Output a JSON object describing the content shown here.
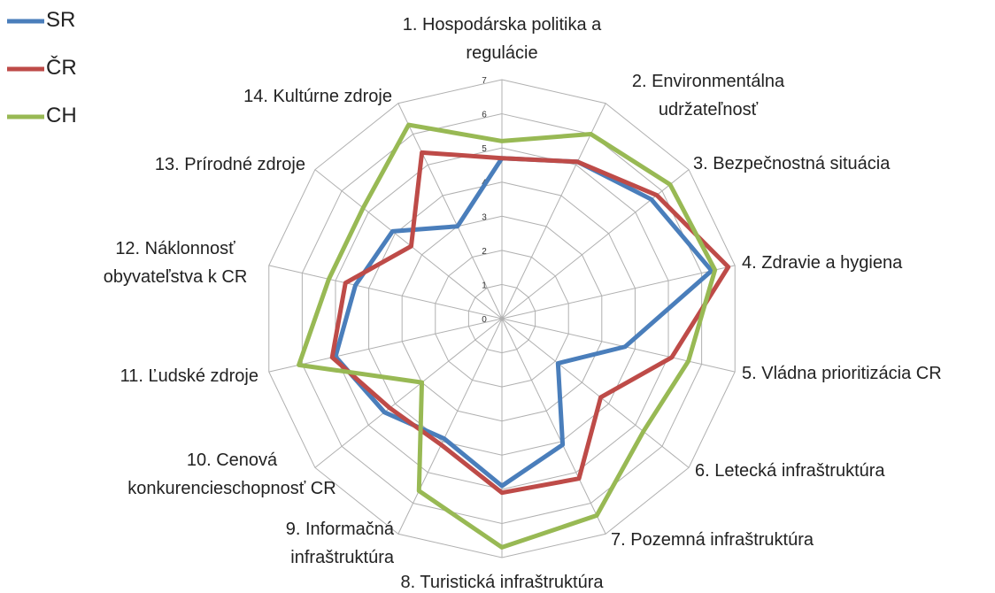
{
  "chart_data": {
    "type": "radar",
    "categories": [
      "1. Hospodárska politika a regulácie",
      "2. Environmentálna udržateľnosť",
      "3. Bezpečnostná situácia",
      "4. Zdravie a hygiena",
      "5. Vládna prioritizácia CR",
      "6. Letecká infraštruktúra",
      "7. Pozemná infraštruktúra",
      "8. Turistická infraštruktúra",
      "9. Informačná infraštruktúra",
      "10. Cenová konkurencieschopnosť CR",
      "11. Ľudské zdroje",
      "12. Náklonnosť obyvateľstva k CR",
      "13. Prírodné zdroje",
      "14. Kultúrne zdroje"
    ],
    "series": [
      {
        "name": "SR",
        "color": "#4a7ebb",
        "values": [
          4.7,
          5.1,
          5.6,
          6.3,
          3.7,
          2.1,
          4.1,
          4.9,
          3.9,
          4.4,
          5.0,
          4.4,
          4.1,
          3.0
        ]
      },
      {
        "name": "ČR",
        "color": "#be4b48",
        "values": [
          4.7,
          5.1,
          5.8,
          6.8,
          5.1,
          3.7,
          5.2,
          5.1,
          4.1,
          4.2,
          5.1,
          4.7,
          3.4,
          5.4
        ]
      },
      {
        "name": "CH",
        "color": "#98b954",
        "values": [
          5.2,
          6.0,
          6.3,
          6.4,
          5.6,
          5.3,
          6.4,
          6.7,
          5.6,
          3.0,
          6.1,
          5.2,
          5.2,
          6.3
        ]
      }
    ],
    "ylim": [
      0,
      7
    ],
    "yticks": [
      0,
      1,
      2,
      3,
      4,
      5,
      6,
      7
    ],
    "grid": true,
    "legend": "top-left"
  }
}
